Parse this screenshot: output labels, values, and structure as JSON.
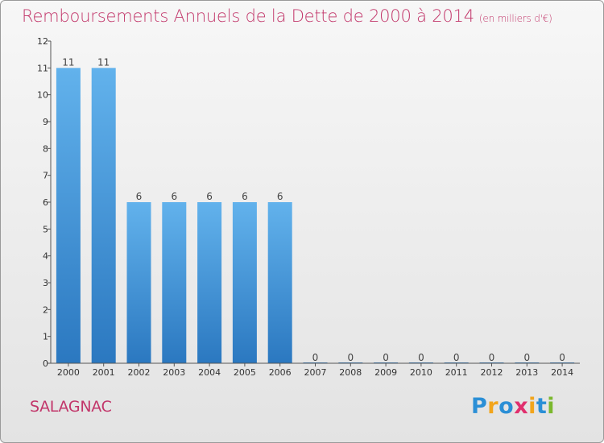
{
  "title": "Remboursements Annuels de la Dette de 2000 à 2014",
  "subtitle": "(en milliers d'€)",
  "commune": "SALAGNAC",
  "logo": {
    "letters": [
      "P",
      "r",
      "o",
      "x",
      "i",
      "t",
      "i"
    ],
    "colors": [
      "#2b8fd6",
      "#f2a51c",
      "#2b8fd6",
      "#e0306e",
      "#f2a51c",
      "#2b8fd6",
      "#7bb82e"
    ]
  },
  "colors": {
    "bar_top": "#62b2ec",
    "bar_bottom": "#2b78c0",
    "title": "#c2366a"
  },
  "chart_data": {
    "type": "bar",
    "categories": [
      "2000",
      "2001",
      "2002",
      "2003",
      "2004",
      "2005",
      "2006",
      "2007",
      "2008",
      "2009",
      "2010",
      "2011",
      "2012",
      "2013",
      "2014"
    ],
    "values": [
      11,
      11,
      6,
      6,
      6,
      6,
      6,
      0,
      0,
      0,
      0,
      0,
      0,
      0,
      0
    ],
    "ylim": [
      0,
      12
    ],
    "yticks": [
      0,
      1,
      2,
      3,
      4,
      5,
      6,
      7,
      8,
      9,
      10,
      11,
      12
    ],
    "grid": false,
    "legend": "none"
  }
}
